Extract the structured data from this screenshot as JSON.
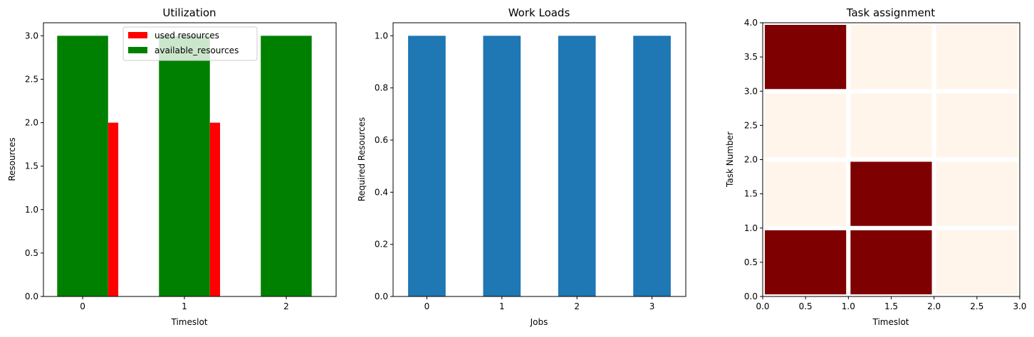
{
  "chart_data": [
    {
      "type": "bar",
      "title": "Utilization",
      "xlabel": "Timeslot",
      "ylabel": "Resources",
      "categories": [
        0,
        1,
        2
      ],
      "xlim": [
        -0.385,
        2.49
      ],
      "ylim": [
        0,
        3.15
      ],
      "xticks": [
        "0",
        "1",
        "2"
      ],
      "yticks": [
        "0.0",
        "0.5",
        "1.0",
        "1.5",
        "2.0",
        "2.5",
        "3.0"
      ],
      "legend_position": "top-center",
      "series": [
        {
          "name": "used resources",
          "color": "#ff0000",
          "values": [
            2,
            2,
            0
          ]
        },
        {
          "name": "available_resources",
          "color": "#008000",
          "values": [
            3,
            3,
            3
          ]
        }
      ]
    },
    {
      "type": "bar",
      "title": "Work Loads",
      "xlabel": "Jobs",
      "ylabel": "Required Resources",
      "categories": [
        0,
        1,
        2,
        3
      ],
      "values": [
        1,
        1,
        1,
        1
      ],
      "color": "#1f77b4",
      "xlim": [
        -0.45,
        3.45
      ],
      "ylim": [
        0,
        1.05
      ],
      "xticks": [
        "0",
        "1",
        "2",
        "3"
      ],
      "yticks": [
        "0.0",
        "0.2",
        "0.4",
        "0.6",
        "0.8",
        "1.0"
      ]
    },
    {
      "type": "heatmap",
      "title": "Task assignment",
      "xlabel": "Timeslot",
      "ylabel": "Task Number",
      "xlim": [
        0,
        3
      ],
      "ylim": [
        0,
        4
      ],
      "xticks": [
        "0.0",
        "0.5",
        "1.0",
        "1.5",
        "2.0",
        "2.5",
        "3.0"
      ],
      "yticks": [
        "0.0",
        "0.5",
        "1.0",
        "1.5",
        "2.0",
        "2.5",
        "3.0",
        "3.5",
        "4.0"
      ],
      "colormap": {
        "low": "#fff5eb",
        "high": "#7f0000"
      },
      "rows_bottom_to_top": [
        [
          1,
          1,
          0
        ],
        [
          0,
          1,
          0
        ],
        [
          0,
          0,
          0
        ],
        [
          1,
          0,
          0
        ]
      ]
    }
  ]
}
